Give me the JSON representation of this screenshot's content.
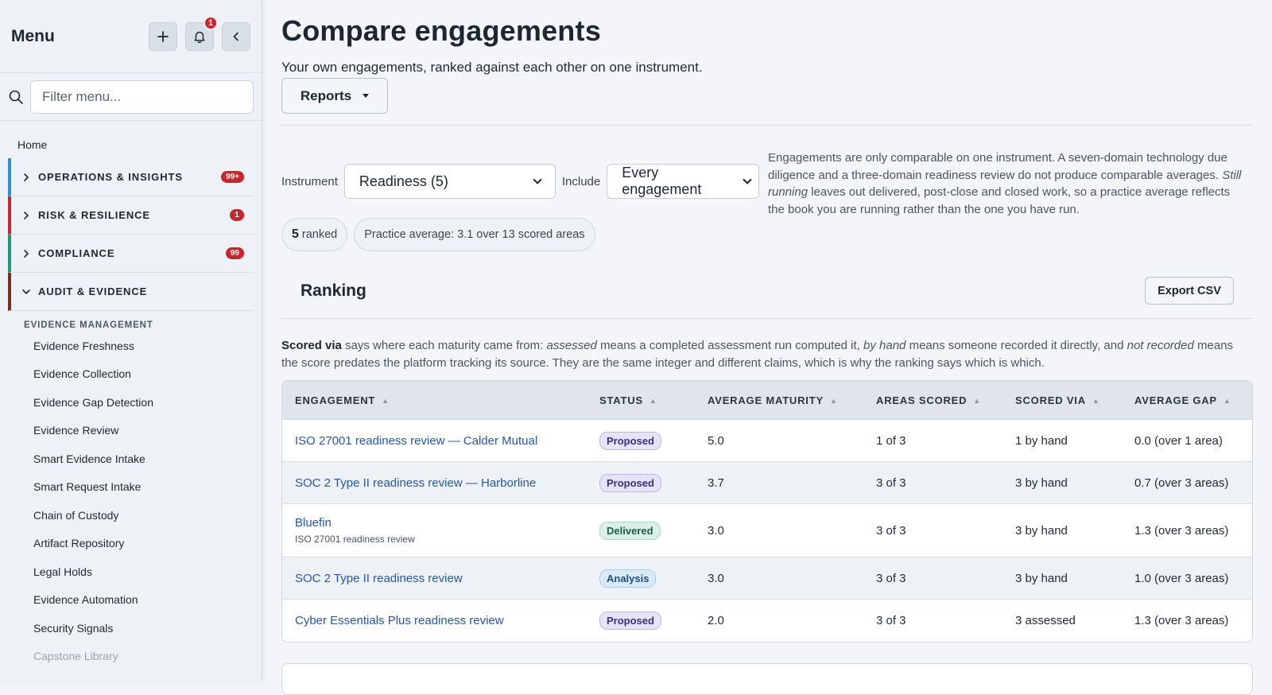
{
  "sidebar": {
    "title": "Menu",
    "notif_count": "1",
    "search_placeholder": "Filter menu...",
    "home": "Home",
    "groups": [
      {
        "label": "OPERATIONS & INSIGHTS",
        "badge": "99+",
        "color": "#2a8fd6"
      },
      {
        "label": "RISK & RESILIENCE",
        "badge": "1",
        "color": "#c8262e"
      },
      {
        "label": "COMPLIANCE",
        "badge": "99",
        "color": "#1a9a72"
      },
      {
        "label": "AUDIT & EVIDENCE",
        "badge": "",
        "color": "#7a2e1e"
      }
    ],
    "sub_head": "EVIDENCE MANAGEMENT",
    "items": [
      "Evidence Freshness",
      "Evidence Collection",
      "Evidence Gap Detection",
      "Evidence Review",
      "Smart Evidence Intake",
      "Smart Request Intake",
      "Chain of Custody",
      "Artifact Repository",
      "Legal Holds",
      "Evidence Automation",
      "Security Signals",
      "Capstone Library"
    ]
  },
  "main": {
    "title": "Compare engagements",
    "subtitle": "Your own engagements, ranked against each other on one instrument.",
    "reports_label": "Reports",
    "instrument_label": "Instrument",
    "instrument_value": "Readiness (5)",
    "include_label": "Include",
    "include_value": "Every engagement",
    "explain_1": "Engagements are only comparable on one instrument. A seven-domain technology due diligence and a three-domain readiness review do not produce comparable averages.",
    "explain_em": "Still running",
    "explain_2": " leaves out delivered, post-close and closed work, so a practice average reflects the book you are running rather than the one you have run.",
    "ranked_count": "5",
    "ranked_label": "ranked",
    "practice_avg": "Practice average: 3.1 over 13 scored areas",
    "ranking_title": "Ranking",
    "export_label": "Export CSV",
    "scored_note": {
      "b": "Scored via",
      "t1": " says where each maturity came from: ",
      "e1": "assessed",
      "t2": " means a completed assessment run computed it, ",
      "e2": "by hand",
      "t3": " means someone recorded it directly, and ",
      "e3": "not recorded",
      "t4": " means the score predates the platform tracking its source. They are the same integer and different claims, which is why the ranking says which is which."
    }
  },
  "table": {
    "headers": [
      "ENGAGEMENT",
      "STATUS",
      "AVERAGE MATURITY",
      "AREAS SCORED",
      "SCORED VIA",
      "AVERAGE GAP"
    ],
    "rows": [
      {
        "engagement": "ISO 27001 readiness review — Calder Mutual",
        "sub": "",
        "status": "Proposed",
        "maturity": "5.0",
        "areas": "1 of 3",
        "via": "1 by hand",
        "gap": "0.0 (over 1 area)"
      },
      {
        "engagement": "SOC 2 Type II readiness review — Harborline",
        "sub": "",
        "status": "Proposed",
        "maturity": "3.7",
        "areas": "3 of 3",
        "via": "3 by hand",
        "gap": "0.7 (over 3 areas)"
      },
      {
        "engagement": "Bluefin",
        "sub": "ISO 27001 readiness review",
        "status": "Delivered",
        "maturity": "3.0",
        "areas": "3 of 3",
        "via": "3 by hand",
        "gap": "1.3 (over 3 areas)"
      },
      {
        "engagement": "SOC 2 Type II readiness review",
        "sub": "",
        "status": "Analysis",
        "maturity": "3.0",
        "areas": "3 of 3",
        "via": "3 by hand",
        "gap": "1.0 (over 3 areas)"
      },
      {
        "engagement": "Cyber Essentials Plus readiness review",
        "sub": "",
        "status": "Proposed",
        "maturity": "2.0",
        "areas": "3 of 3",
        "via": "3 assessed",
        "gap": "1.3 (over 3 areas)"
      }
    ]
  }
}
